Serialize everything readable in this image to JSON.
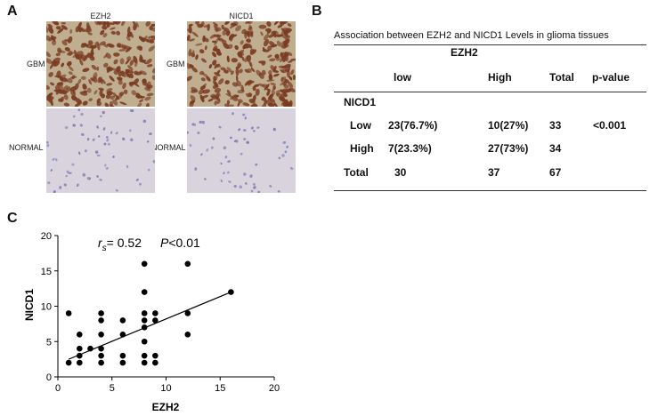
{
  "panels": {
    "a": "A",
    "b": "B",
    "c": "C"
  },
  "panel_a": {
    "columns": [
      "EZH2",
      "NICD1"
    ],
    "rows": [
      "GBM",
      "NORMAL"
    ]
  },
  "panel_b": {
    "title": "Association between EZH2 and NICD1 Levels in glioma tissues",
    "group_header": "EZH2",
    "headers": [
      "low",
      "High",
      "Total",
      "p-value"
    ],
    "row_group": "NICD1",
    "rows": [
      {
        "label": "Low",
        "low": "23(76.7%)",
        "high": "10(27%)",
        "total": "33",
        "p": "<0.001"
      },
      {
        "label": "High",
        "low": "7(23.3%)",
        "high": "27(73%)",
        "total": "34",
        "p": ""
      },
      {
        "label": "Total",
        "low": "30",
        "high": "37",
        "total": "67",
        "p": ""
      }
    ]
  },
  "chart_data": {
    "type": "scatter",
    "xlabel": "EZH2",
    "ylabel": "NICD1",
    "xlim": [
      0,
      20
    ],
    "ylim": [
      0,
      20
    ],
    "xticks": [
      0,
      5,
      10,
      15,
      20
    ],
    "yticks": [
      0,
      5,
      10,
      15,
      20
    ],
    "annotation": {
      "r_symbol": "r",
      "r_sub": "s",
      "r_value": "= 0.52",
      "p_symbol": "P",
      "p_value": "<0.01"
    },
    "points": [
      [
        1,
        9
      ],
      [
        1,
        2
      ],
      [
        2,
        6
      ],
      [
        2,
        4
      ],
      [
        2,
        3
      ],
      [
        2,
        2
      ],
      [
        3,
        4
      ],
      [
        4,
        9
      ],
      [
        4,
        8
      ],
      [
        4,
        6
      ],
      [
        4,
        4
      ],
      [
        4,
        3
      ],
      [
        4,
        2
      ],
      [
        6,
        8
      ],
      [
        6,
        6
      ],
      [
        6,
        3
      ],
      [
        6,
        2
      ],
      [
        8,
        16
      ],
      [
        8,
        12
      ],
      [
        8,
        9
      ],
      [
        8,
        8
      ],
      [
        8,
        7
      ],
      [
        8,
        5
      ],
      [
        8,
        3
      ],
      [
        8,
        2
      ],
      [
        9,
        9
      ],
      [
        9,
        8
      ],
      [
        9,
        3
      ],
      [
        9,
        2
      ],
      [
        12,
        16
      ],
      [
        12,
        9
      ],
      [
        12,
        6
      ],
      [
        16,
        12
      ]
    ],
    "trendline": [
      [
        1,
        2.5
      ],
      [
        16,
        12
      ]
    ],
    "grid": false
  },
  "colors": {
    "ihc_background_gbm": "#bfae8f",
    "ihc_nuclei_positive": "#7a3b22",
    "ihc_background_normal": "#d9d3de",
    "ihc_nuclei_normal": "#7f7fb4"
  }
}
